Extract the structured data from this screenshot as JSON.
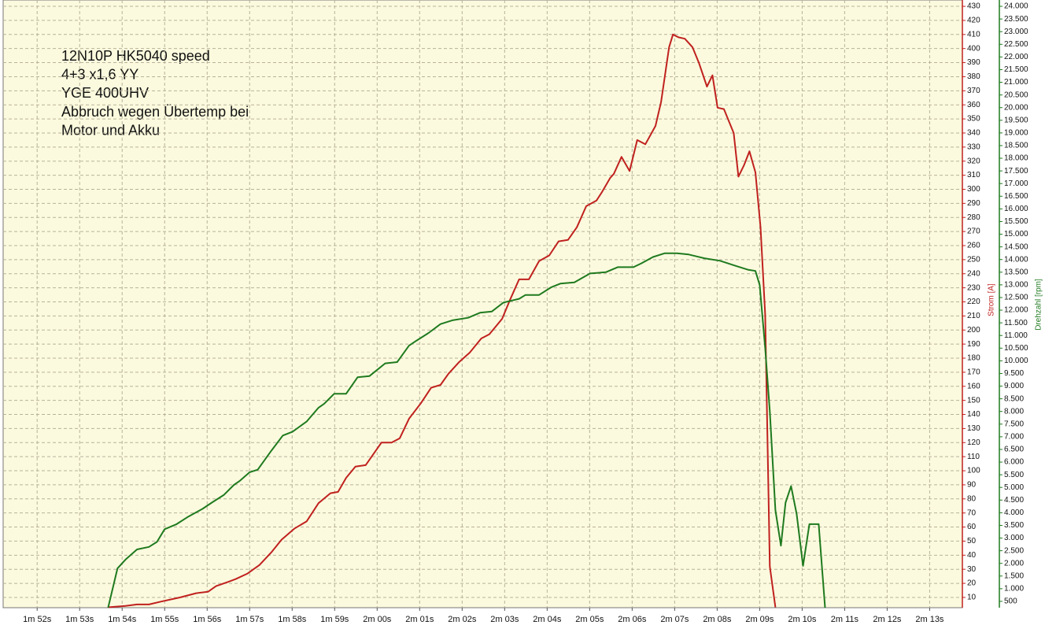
{
  "chart_data": {
    "type": "line",
    "annotation": [
      "12N10P HK5040 speed",
      "4+3 x1,6 YY",
      "YGE 400UHV",
      "Abbruch wegen  Übertemp bei",
      "Motor und Akku"
    ],
    "y_label": "Strom [A]",
    "y2_label": "Drehzahl [rpm]",
    "grid": true,
    "xlim": [
      111.2,
      133.77
    ],
    "xticks": [
      {
        "value": 112,
        "label": "1m 52s"
      },
      {
        "value": 113,
        "label": "1m 53s"
      },
      {
        "value": 114,
        "label": "1m 54s"
      },
      {
        "value": 115,
        "label": "1m 55s"
      },
      {
        "value": 116,
        "label": "1m 56s"
      },
      {
        "value": 117,
        "label": "1m 57s"
      },
      {
        "value": 118,
        "label": "1m 58s"
      },
      {
        "value": 119,
        "label": "1m 59s"
      },
      {
        "value": 120,
        "label": "2m 00s"
      },
      {
        "value": 121,
        "label": "2m 01s"
      },
      {
        "value": 122,
        "label": "2m 02s"
      },
      {
        "value": 123,
        "label": "2m 03s"
      },
      {
        "value": 124,
        "label": "2m 04s"
      },
      {
        "value": 125,
        "label": "2m 05s"
      },
      {
        "value": 126,
        "label": "2m 06s"
      },
      {
        "value": 127,
        "label": "2m 07s"
      },
      {
        "value": 128,
        "label": "2m 08s"
      },
      {
        "value": 129,
        "label": "2m 09s"
      },
      {
        "value": 130,
        "label": "2m 10s"
      },
      {
        "value": 131,
        "label": "2m 11s"
      },
      {
        "value": 132,
        "label": "2m 12s"
      },
      {
        "value": 133,
        "label": "2m 13s"
      }
    ],
    "ylim": [
      2.7,
      434.5
    ],
    "yticks": [
      10,
      20,
      30,
      40,
      50,
      60,
      70,
      80,
      90,
      100,
      110,
      120,
      130,
      140,
      150,
      160,
      170,
      180,
      190,
      200,
      210,
      220,
      230,
      240,
      250,
      260,
      270,
      280,
      290,
      300,
      310,
      320,
      330,
      340,
      350,
      360,
      370,
      380,
      390,
      400,
      410,
      420,
      430
    ],
    "y2lim": [
      250,
      24250
    ],
    "y2ticks": [
      500,
      {
        "value": 1000,
        "label": "1.000"
      },
      {
        "value": 1500,
        "label": "1.500"
      },
      {
        "value": 2000,
        "label": "2.000"
      },
      {
        "value": 2500,
        "label": "2.500"
      },
      {
        "value": 3000,
        "label": "3.000"
      },
      {
        "value": 3500,
        "label": "3.500"
      },
      {
        "value": 4000,
        "label": "4.000"
      },
      {
        "value": 4500,
        "label": "4.500"
      },
      {
        "value": 5000,
        "label": "5.000"
      },
      {
        "value": 5500,
        "label": "5.500"
      },
      {
        "value": 6000,
        "label": "6.000"
      },
      {
        "value": 6500,
        "label": "6.500"
      },
      {
        "value": 7000,
        "label": "7.000"
      },
      {
        "value": 7500,
        "label": "7.500"
      },
      {
        "value": 8000,
        "label": "8.000"
      },
      {
        "value": 8500,
        "label": "8.500"
      },
      {
        "value": 9000,
        "label": "9.000"
      },
      {
        "value": 9500,
        "label": "9.500"
      },
      {
        "value": 10000,
        "label": "10.000"
      },
      {
        "value": 10500,
        "label": "10.500"
      },
      {
        "value": 11000,
        "label": "11.000"
      },
      {
        "value": 11500,
        "label": "11.500"
      },
      {
        "value": 12000,
        "label": "12.000"
      },
      {
        "value": 12500,
        "label": "12.500"
      },
      {
        "value": 13000,
        "label": "13.000"
      },
      {
        "value": 13500,
        "label": "13.500"
      },
      {
        "value": 14000,
        "label": "14.000"
      },
      {
        "value": 14500,
        "label": "14.500"
      },
      {
        "value": 15000,
        "label": "15.000"
      },
      {
        "value": 15500,
        "label": "15.500"
      },
      {
        "value": 16000,
        "label": "16.000"
      },
      {
        "value": 16500,
        "label": "16.500"
      },
      {
        "value": 17000,
        "label": "17.000"
      },
      {
        "value": 17500,
        "label": "17.500"
      },
      {
        "value": 18000,
        "label": "18.000"
      },
      {
        "value": 18500,
        "label": "18.500"
      },
      {
        "value": 19000,
        "label": "19.000"
      },
      {
        "value": 19500,
        "label": "19.500"
      },
      {
        "value": 20000,
        "label": "20.000"
      },
      {
        "value": 20500,
        "label": "20.500"
      },
      {
        "value": 21000,
        "label": "21.000"
      },
      {
        "value": 21500,
        "label": "21.500"
      },
      {
        "value": 22000,
        "label": "22.000"
      },
      {
        "value": 22500,
        "label": "22.500"
      },
      {
        "value": 23000,
        "label": "23.000"
      },
      {
        "value": 23500,
        "label": "23.500"
      },
      {
        "value": 24000,
        "label": "24.000"
      }
    ],
    "series": [
      {
        "color": "#c0211f",
        "x": [
          113.67,
          114.08,
          114.35,
          114.63,
          114.91,
          115.37,
          115.74,
          116.02,
          116.21,
          116.49,
          116.67,
          116.95,
          117.23,
          117.51,
          117.75,
          118.06,
          118.34,
          118.62,
          118.9,
          119.08,
          119.27,
          119.49,
          119.73,
          120.1,
          120.34,
          120.53,
          120.75,
          121.03,
          121.27,
          121.49,
          121.68,
          121.92,
          122.18,
          122.45,
          122.64,
          122.94,
          123.12,
          123.34,
          123.57,
          123.81,
          124.05,
          124.27,
          124.49,
          124.7,
          124.92,
          125.16,
          125.29,
          125.48,
          125.57,
          125.75,
          125.94,
          126.12,
          126.31,
          126.55,
          126.68,
          126.87,
          126.96,
          127.09,
          127.24,
          127.42,
          127.57,
          127.76,
          127.89,
          128.01,
          128.16,
          128.39,
          128.5,
          128.63,
          128.76,
          128.9,
          129.02,
          129.13,
          129.24,
          129.37
        ],
        "values": [
          3,
          4,
          5,
          5,
          7,
          10,
          13,
          14,
          18,
          21,
          23,
          27,
          33,
          42,
          51,
          59,
          64,
          77,
          84,
          85,
          95,
          103,
          104,
          120,
          120,
          123,
          137,
          148,
          159,
          161,
          169,
          177,
          184,
          194,
          197,
          208,
          221,
          236,
          236,
          249,
          253,
          263,
          264,
          273,
          288,
          292,
          298,
          308,
          311,
          323,
          313,
          335,
          332,
          345,
          362,
          401,
          410,
          408,
          407,
          401,
          390,
          373,
          381,
          358,
          357,
          340,
          309,
          317,
          327,
          312,
          273,
          211,
          32,
          3
        ]
      },
      {
        "color": "#1f7a1f",
        "axis": "y2",
        "x": [
          113.67,
          113.89,
          114.08,
          114.35,
          114.63,
          114.82,
          115.0,
          115.28,
          115.56,
          115.89,
          116.11,
          116.39,
          116.63,
          116.76,
          117.0,
          117.19,
          117.51,
          117.78,
          118.01,
          118.34,
          118.62,
          118.75,
          118.99,
          119.27,
          119.54,
          119.82,
          120.19,
          120.47,
          120.75,
          120.93,
          121.21,
          121.49,
          121.77,
          122.14,
          122.42,
          122.7,
          122.97,
          123.34,
          123.49,
          123.81,
          124.09,
          124.31,
          124.64,
          125.01,
          125.38,
          125.66,
          126.03,
          126.22,
          126.49,
          126.77,
          127.05,
          127.33,
          127.7,
          128.07,
          128.44,
          128.72,
          128.9,
          129.0,
          129.13,
          129.24,
          129.37,
          129.5,
          129.61,
          129.74,
          129.87,
          130.02,
          130.17,
          130.39,
          130.54
        ],
        "values": [
          250,
          1800,
          2150,
          2550,
          2650,
          2850,
          3350,
          3550,
          3850,
          4150,
          4400,
          4700,
          5100,
          5250,
          5600,
          5700,
          6450,
          7050,
          7200,
          7600,
          8150,
          8300,
          8700,
          8700,
          9350,
          9400,
          9900,
          9950,
          10600,
          10800,
          11100,
          11450,
          11600,
          11700,
          11900,
          11950,
          12300,
          12450,
          12600,
          12600,
          12900,
          13050,
          13100,
          13450,
          13500,
          13700,
          13700,
          13850,
          14100,
          14250,
          14250,
          14200,
          14050,
          13950,
          13750,
          13600,
          13550,
          13000,
          10500,
          8000,
          4100,
          2700,
          4400,
          5050,
          3950,
          1900,
          3550,
          3550,
          250
        ]
      }
    ]
  }
}
